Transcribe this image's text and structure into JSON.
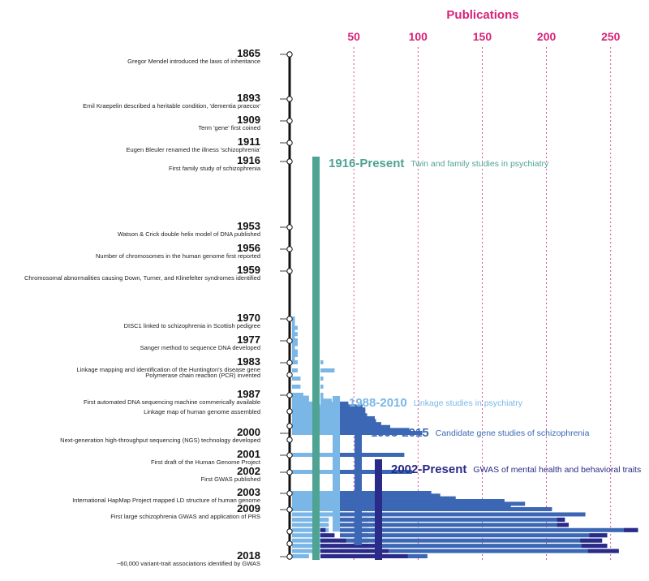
{
  "chart_data": {
    "type": "bar",
    "title": "",
    "xlabel": "Publications",
    "xlim": [
      0,
      250
    ],
    "xticks": [
      50,
      100,
      150,
      200,
      250
    ],
    "colors": {
      "axis": "#d6237a",
      "timeline": "#111111",
      "twin": "#4ea393",
      "linkage": "#7ab7e6",
      "candidate": "#3b67b5",
      "gwas": "#2a2a88"
    },
    "timeline": {
      "start_year": 1865,
      "end_year": 2018,
      "events": [
        {
          "year": "1865",
          "text": "Gregor Mendel introduced the laws of inheritance"
        },
        {
          "year": "1893",
          "text": "Emil Kraepelin described a heritable condition, 'dementia praecox'"
        },
        {
          "year": "1909",
          "text": "Term 'gene' first coined"
        },
        {
          "year": "1911",
          "text": "Eugen Bleuler renamed the illness 'schizophrenia'"
        },
        {
          "year": "1916",
          "text": "First family study of schizophrenia"
        },
        {
          "year": "1953",
          "text": "Watson & Crick double helix model of DNA published"
        },
        {
          "year": "1956",
          "text": "Number of chromosomes in the human genome first reported"
        },
        {
          "year": "1959",
          "text": "Chromosomal abnormalities causing Down, Turner, and Klinefelter syndromes identified"
        },
        {
          "year": "1970",
          "text": "DISC1 linked to schizophrenia in Scottish pedigree"
        },
        {
          "year": "1977",
          "text": "Sanger method to sequence DNA developed"
        },
        {
          "year": "1983",
          "text": "Linkage mapping and identification of the Huntington's disease gene"
        },
        {
          "year": "",
          "text": "Polymerase chain reaction (PCR) invented"
        },
        {
          "year": "1987",
          "text": "First automated DNA sequencing machine commerically available"
        },
        {
          "year": "",
          "text": "Linkage map of human genome assembled"
        },
        {
          "year": "2000",
          "text": "Next-generation high-throughput sequencing (NGS) technology developed"
        },
        {
          "year": "2001",
          "text": "First draft of the Human Genome Project"
        },
        {
          "year": "2002",
          "text": "First GWAS published"
        },
        {
          "year": "2003",
          "text": "International HapMap Project mapped LD structure of human genome"
        },
        {
          "year": "2009",
          "text": "First large schizophrenia GWAS and application of PRS"
        },
        {
          "year": "2018",
          "text": "~60,000 variant-trait associations identified by GWAS"
        }
      ]
    },
    "eras": [
      {
        "key": "twin",
        "title": "1916-Present",
        "desc": "Twin and family studies in psychiatry"
      },
      {
        "key": "linkage",
        "title": "1988-2010",
        "desc": "Linkage studies in psychiatry"
      },
      {
        "key": "candidate",
        "title": "1995-2015",
        "desc": "Candidate gene studies of schizophrenia"
      },
      {
        "key": "gwas",
        "title": "2002-Present",
        "desc": "GWAS of mental health and behavioral traits"
      }
    ],
    "series": [
      {
        "key": "twin",
        "years": [
          1970,
          1971,
          1972,
          1973,
          1974,
          1975,
          1976,
          1977,
          1978,
          1979,
          1980,
          1981,
          1982,
          1983,
          1984,
          1985,
          1986,
          1987,
          1988,
          1989,
          1990,
          1991,
          1992,
          1993,
          1994,
          1995,
          1996,
          1997,
          1998,
          1999,
          2000,
          2001,
          2002,
          2003,
          2004,
          2005,
          2006,
          2007,
          2008,
          2009,
          2010,
          2011,
          2012,
          2013,
          2014,
          2015,
          2016,
          2017,
          2018
        ],
        "values": [
          1,
          1,
          1,
          2,
          1,
          2,
          1,
          2,
          2,
          1,
          2,
          2,
          1,
          2,
          2,
          3,
          3,
          4,
          6,
          6,
          9,
          10,
          11,
          12,
          12,
          13,
          13,
          13,
          13,
          13,
          13,
          13,
          13,
          13,
          13,
          13,
          13,
          13,
          13,
          13,
          13,
          13,
          13,
          13,
          13,
          13,
          12,
          10,
          6
        ]
      },
      {
        "key": "linkage",
        "years": [
          1983,
          1984,
          1985,
          1986,
          1987,
          1988,
          1989,
          1990,
          1991,
          1992,
          1993,
          1994,
          1995,
          1996,
          1997,
          1998,
          1999,
          2000,
          2001,
          2002,
          2003,
          2004,
          2005,
          2006,
          2007,
          2008,
          2009,
          2010
        ],
        "values": [
          1,
          5,
          1,
          1,
          1,
          1,
          4,
          6,
          10,
          9,
          10,
          10,
          9,
          10,
          10,
          10,
          10,
          10,
          10,
          10,
          10,
          10,
          10,
          10,
          10,
          10,
          10,
          10
        ]
      },
      {
        "key": "candidate",
        "years": [
          1990,
          1991,
          1992,
          1993,
          1994,
          1995,
          1996,
          1997,
          1998,
          1999,
          2000,
          2001,
          2002,
          2003,
          2004,
          2005,
          2006,
          2007,
          2008,
          2009,
          2010,
          2011,
          2012,
          2013,
          2014,
          2015,
          2016,
          2017,
          2018
        ],
        "values": [
          3,
          8,
          9,
          9,
          8,
          10,
          10,
          10,
          10,
          10,
          10,
          10,
          10,
          10,
          10,
          10,
          10,
          10,
          10,
          10,
          10,
          10,
          10,
          10,
          10,
          10,
          10,
          10,
          10
        ]
      },
      {
        "key": "gwas",
        "years": [
          1993,
          1994,
          1995,
          1996,
          1997,
          1998,
          1999,
          2000,
          2001,
          2002,
          2003,
          2004,
          2005,
          2006,
          2007,
          2008,
          2009,
          2010,
          2011,
          2012,
          2013,
          2014,
          2015,
          2016,
          2017,
          2018
        ],
        "values": [
          4,
          6,
          12,
          13,
          17,
          24,
          39,
          49,
          35,
          41,
          56,
          63,
          75,
          113,
          129,
          118,
          150,
          176,
          160,
          163,
          217,
          193,
          189,
          193,
          202,
          53
        ]
      },
      {
        "key": "gwas_tail",
        "years": [
          2013,
          2014,
          2015,
          2016,
          2017,
          2018
        ],
        "values": [
          4,
          11,
          20,
          45,
          53,
          68
        ]
      },
      {
        "key": "gwas_overlay",
        "years": [
          2011,
          2012,
          2013,
          2014,
          2015,
          2016,
          2017,
          2018
        ],
        "values": [
          6,
          9,
          11,
          14,
          17,
          20,
          24,
          0
        ]
      }
    ]
  }
}
